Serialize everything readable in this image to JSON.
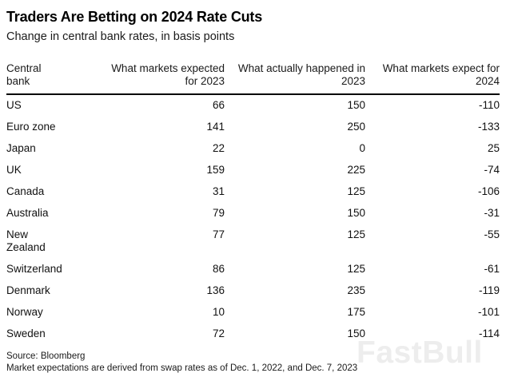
{
  "chart_data": {
    "type": "table",
    "title": "Traders Are Betting on 2024 Rate Cuts",
    "subtitle": "Change in central bank rates, in basis points",
    "unit": "basis points",
    "columns": [
      {
        "label": "Central bank",
        "line1": "Central",
        "line2": "bank",
        "align": "left"
      },
      {
        "label": "What markets expected for 2023",
        "line1": "What markets expected",
        "line2": "for 2023",
        "align": "right"
      },
      {
        "label": "What actually happened in 2023",
        "line1": "What actually happened in",
        "line2": "2023",
        "align": "right"
      },
      {
        "label": "What markets expect for 2024",
        "line1": "What markets expect for",
        "line2": "2024",
        "align": "right"
      }
    ],
    "rows": [
      {
        "bank": "US",
        "values": [
          66,
          150,
          -110
        ]
      },
      {
        "bank": "Euro zone",
        "values": [
          141,
          250,
          -133
        ]
      },
      {
        "bank": "Japan",
        "values": [
          22,
          0,
          25
        ]
      },
      {
        "bank": "UK",
        "values": [
          159,
          225,
          -74
        ]
      },
      {
        "bank": "Canada",
        "values": [
          31,
          125,
          -106
        ]
      },
      {
        "bank": "Australia",
        "values": [
          79,
          150,
          -31
        ]
      },
      {
        "bank": "New Zealand",
        "values": [
          77,
          125,
          -55
        ]
      },
      {
        "bank": "Switzerland",
        "values": [
          86,
          125,
          -61
        ]
      },
      {
        "bank": "Denmark",
        "values": [
          136,
          235,
          -119
        ]
      },
      {
        "bank": "Norway",
        "values": [
          10,
          175,
          -101
        ]
      },
      {
        "bank": "Sweden",
        "values": [
          72,
          150,
          -114
        ]
      }
    ],
    "source": "Source: Bloomberg",
    "note": "Market expectations are derived from swap rates as of Dec. 1, 2022, and Dec. 7, 2023"
  },
  "watermark": "FastBull",
  "colors": {
    "background": "#ffffff",
    "text": "#111111",
    "header_rule": "#000000",
    "watermark": "#ededed"
  }
}
